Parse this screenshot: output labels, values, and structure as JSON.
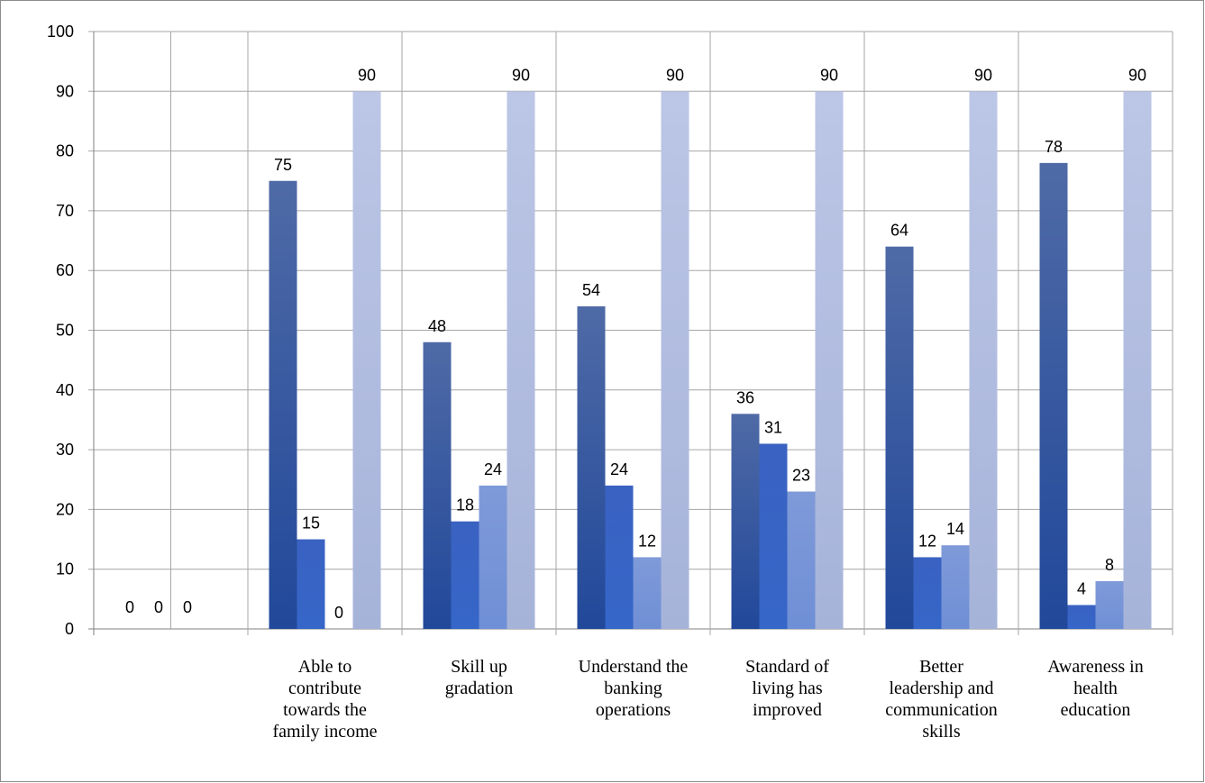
{
  "chart_data": {
    "type": "bar",
    "title": "",
    "xlabel": "",
    "ylabel": "",
    "ylim": [
      0,
      100
    ],
    "y_ticks": [
      "0",
      "10",
      "20",
      "30",
      "40",
      "50",
      "60",
      "70",
      "80",
      "90",
      "100"
    ],
    "grid": true,
    "legend": "none",
    "categories": [
      [
        ""
      ],
      [
        "Able to",
        "contribute",
        "towards the",
        "family income"
      ],
      [
        "Skill up",
        "gradation"
      ],
      [
        "Understand the",
        "banking",
        "operations"
      ],
      [
        "Standard of",
        "living has",
        "improved"
      ],
      [
        "Better",
        "leadership and",
        "communication",
        "skills"
      ],
      [
        "Awareness in",
        "health",
        "education"
      ]
    ],
    "series": [
      {
        "values": [
          0,
          75,
          48,
          54,
          36,
          64,
          78
        ],
        "labels": [
          "0",
          "75",
          "48",
          "54",
          "36",
          "64",
          "78"
        ],
        "color_top": "#4f6aa6",
        "color_bottom": "#21489a"
      },
      {
        "values": [
          0,
          15,
          18,
          24,
          31,
          12,
          4
        ],
        "labels": [
          "0",
          "15",
          "18",
          "24",
          "31",
          "12",
          "4"
        ],
        "color_top": "#3a62c2",
        "color_bottom": "#3566c8"
      },
      {
        "values": [
          0,
          0,
          24,
          12,
          23,
          14,
          8
        ],
        "labels": [
          "0",
          "0",
          "24",
          "12",
          "23",
          "14",
          "8"
        ],
        "color_top": "#7f9ad8",
        "color_bottom": "#6f8fd6"
      },
      {
        "values": [
          null,
          90,
          90,
          90,
          90,
          90,
          90
        ],
        "labels": [
          "",
          "90",
          "90",
          "90",
          "90",
          "90",
          "90"
        ],
        "color_top": "#bcc6e6",
        "color_bottom": "#a6b3d9"
      }
    ],
    "colors": {
      "grid": "#a6a6a6",
      "axis": "#808080",
      "frame": "#8c8c8c"
    }
  }
}
